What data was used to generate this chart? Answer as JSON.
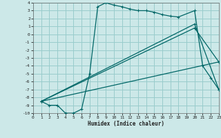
{
  "xlabel": "Humidex (Indice chaleur)",
  "bg_color": "#cce8e8",
  "grid_color": "#99cccc",
  "line_color": "#006666",
  "xlim": [
    0,
    23
  ],
  "ylim": [
    -10,
    4
  ],
  "xtick_vals": [
    0,
    1,
    2,
    3,
    4,
    5,
    6,
    7,
    8,
    9,
    10,
    11,
    12,
    13,
    14,
    15,
    16,
    17,
    18,
    19,
    20,
    21,
    22,
    23
  ],
  "ytick_vals": [
    4,
    3,
    2,
    1,
    0,
    -1,
    -2,
    -3,
    -4,
    -5,
    -6,
    -7,
    -8,
    -9,
    -10
  ],
  "curve1_x": [
    1,
    2,
    3,
    4,
    5,
    6,
    7,
    8,
    9,
    10,
    11,
    12,
    13,
    14,
    15,
    16,
    17,
    18,
    20,
    21,
    22,
    23
  ],
  "curve1_y": [
    -8.5,
    -9,
    -9,
    -10,
    -10,
    -9.5,
    -5,
    3.5,
    4,
    3.7,
    3.5,
    3.2,
    3.0,
    3.0,
    2.8,
    2.5,
    2.3,
    2.2,
    3.0,
    -4.0,
    -5.5,
    -7.0
  ],
  "curve2_x": [
    1,
    20,
    23
  ],
  "curve2_y": [
    -8.5,
    1.3,
    -7.0
  ],
  "curve3_x": [
    1,
    20,
    23
  ],
  "curve3_y": [
    -8.5,
    0.8,
    -3.5
  ],
  "curve4_x": [
    1,
    23
  ],
  "curve4_y": [
    -8.5,
    -3.5
  ]
}
